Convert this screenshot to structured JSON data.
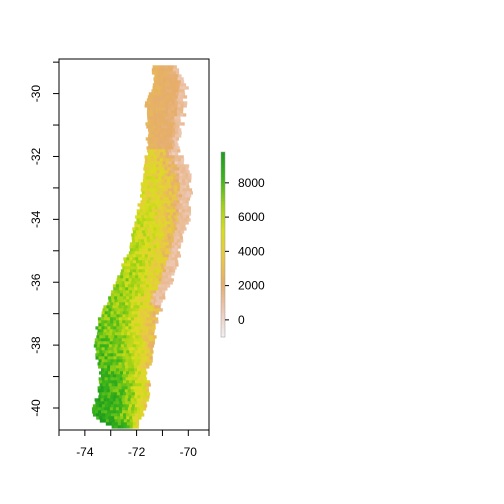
{
  "chart_data": {
    "type": "heatmap",
    "title": "",
    "xlabel": "",
    "ylabel": "",
    "xlim": [
      -75.0,
      -69.2
    ],
    "ylim": [
      -40.7,
      -28.9
    ],
    "x_ticks": [
      -74,
      -72,
      -70
    ],
    "x_tick_labels": [
      "-74",
      "-72",
      "-70"
    ],
    "y_ticks": [
      -30,
      -32,
      -34,
      -36,
      -38,
      -40
    ],
    "y_tick_labels": [
      "-30",
      "-32",
      "-34",
      "-36",
      "-38",
      "-40"
    ],
    "grid": false,
    "legend": {
      "type": "colorbar",
      "placement": "right",
      "range": [
        -1000,
        9800
      ],
      "ticks": [
        0,
        2000,
        4000,
        6000,
        8000
      ],
      "tick_labels": [
        "0",
        "2000",
        "4000",
        "6000",
        "8000"
      ],
      "colors": [
        "#f2f2f2",
        "#eec9b8",
        "#e6ad6b",
        "#e9c845",
        "#d9de1e",
        "#9fd215",
        "#3cb51b",
        "#1e9b1e"
      ]
    },
    "region_description_values": "raster of values over latitude/longitude",
    "land_profile": [
      {
        "lat": -29.1,
        "lon_west": -71.4,
        "lon_east": -70.5
      },
      {
        "lat": -29.6,
        "lon_west": -71.35,
        "lon_east": -70.1
      },
      {
        "lat": -30.3,
        "lon_west": -71.65,
        "lon_east": -70.2
      },
      {
        "lat": -31.0,
        "lon_west": -71.6,
        "lon_east": -70.35
      },
      {
        "lat": -31.8,
        "lon_west": -71.6,
        "lon_east": -70.4
      },
      {
        "lat": -32.5,
        "lon_west": -71.75,
        "lon_east": -70.0
      },
      {
        "lat": -33.3,
        "lon_west": -71.85,
        "lon_east": -69.95
      },
      {
        "lat": -34.0,
        "lon_west": -72.05,
        "lon_east": -70.05
      },
      {
        "lat": -34.8,
        "lon_west": -72.25,
        "lon_east": -70.35
      },
      {
        "lat": -35.6,
        "lon_west": -72.65,
        "lon_east": -70.55
      },
      {
        "lat": -36.4,
        "lon_west": -73.05,
        "lon_east": -71.0
      },
      {
        "lat": -37.2,
        "lon_west": -73.5,
        "lon_east": -71.3
      },
      {
        "lat": -38.0,
        "lon_west": -73.65,
        "lon_east": -71.4
      },
      {
        "lat": -38.8,
        "lon_west": -73.4,
        "lon_east": -71.6
      },
      {
        "lat": -39.5,
        "lon_west": -73.5,
        "lon_east": -71.55
      },
      {
        "lat": -40.2,
        "lon_west": -73.75,
        "lon_east": -71.8
      },
      {
        "lat": -40.6,
        "lon_west": -72.8,
        "lon_east": -72.0
      }
    ]
  }
}
